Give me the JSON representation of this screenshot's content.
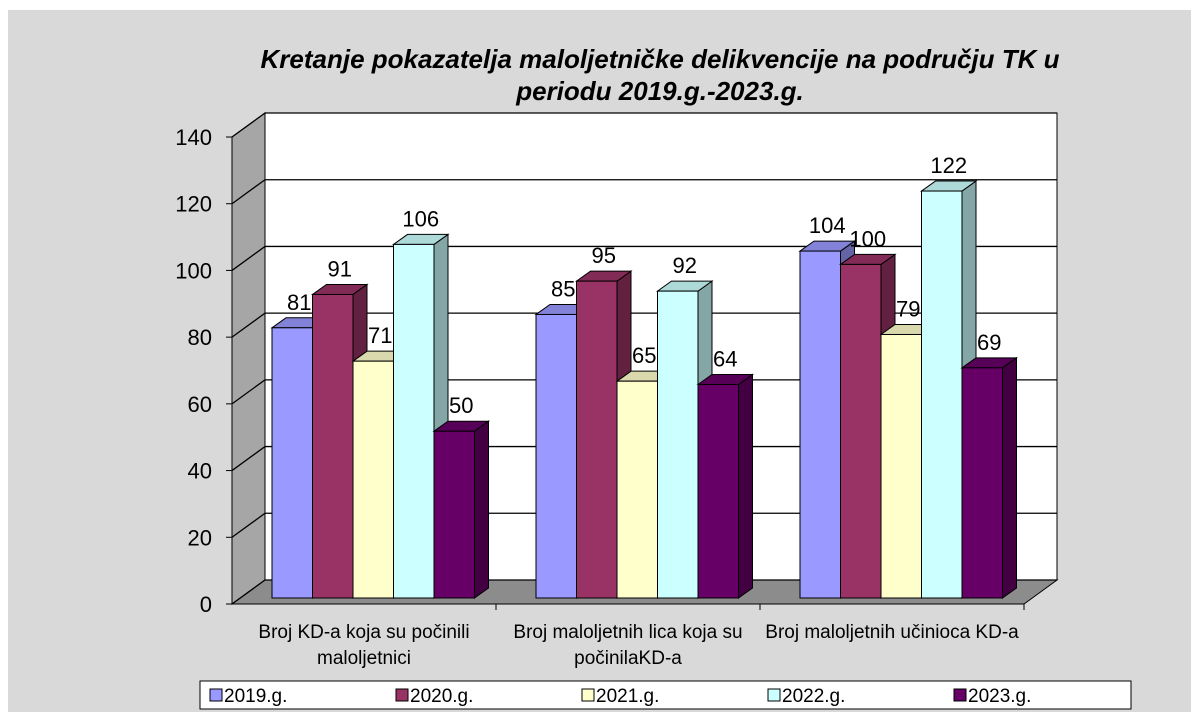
{
  "chart_data": {
    "type": "bar3d",
    "title": "Kretanje pokazatelja maloljetničke delikvencije na području TK u periodu 2019.g.-2023.g.",
    "categories": [
      "Broj KD-a koja su počinili maloljetnici",
      "Broj maloljetnih lica koja su počinilaKD-a",
      "Broj maloljetnih učinioca KD-a"
    ],
    "series": [
      {
        "name": "2019.g.",
        "color": "#9999ff",
        "values": [
          81,
          85,
          104
        ]
      },
      {
        "name": "2020.g.",
        "color": "#993366",
        "values": [
          91,
          95,
          100
        ]
      },
      {
        "name": "2021.g.",
        "color": "#ffffcc",
        "values": [
          71,
          65,
          79
        ]
      },
      {
        "name": "2022.g.",
        "color": "#ccffff",
        "values": [
          106,
          92,
          122
        ]
      },
      {
        "name": "2023.g.",
        "color": "#660066",
        "values": [
          50,
          64,
          69
        ]
      }
    ],
    "ylim": [
      0,
      140
    ],
    "yticks": [
      0,
      20,
      40,
      60,
      80,
      100,
      120,
      140
    ],
    "grid": true,
    "legend": "bottom"
  }
}
